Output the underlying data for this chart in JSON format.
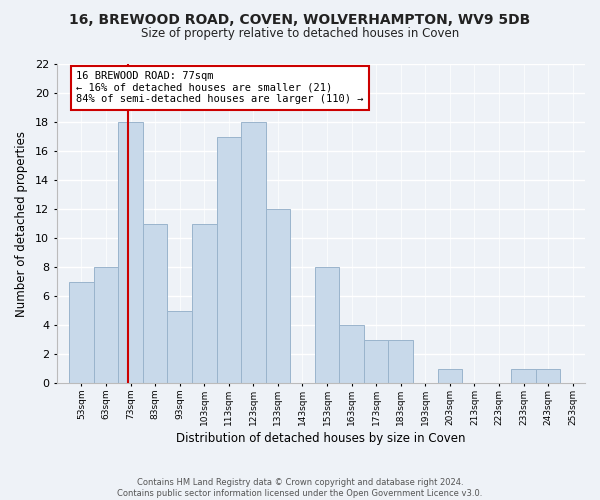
{
  "title": "16, BREWOOD ROAD, COVEN, WOLVERHAMPTON, WV9 5DB",
  "subtitle": "Size of property relative to detached houses in Coven",
  "xlabel": "Distribution of detached houses by size in Coven",
  "ylabel": "Number of detached properties",
  "footer_line1": "Contains HM Land Registry data © Crown copyright and database right 2024.",
  "footer_line2": "Contains public sector information licensed under the Open Government Licence v3.0.",
  "bar_edges": [
    53,
    63,
    73,
    83,
    93,
    103,
    113,
    123,
    133,
    143,
    153,
    163,
    173,
    183,
    193,
    203,
    213,
    223,
    233,
    243,
    253
  ],
  "bar_heights": [
    7,
    8,
    18,
    11,
    5,
    11,
    17,
    18,
    12,
    0,
    8,
    4,
    3,
    3,
    0,
    1,
    0,
    0,
    1,
    1
  ],
  "bar_color": "#c8d9ea",
  "bar_edgecolor": "#9ab4cc",
  "subject_line_x": 77,
  "subject_label": "16 BREWOOD ROAD: 77sqm",
  "annotation_line1": "← 16% of detached houses are smaller (21)",
  "annotation_line2": "84% of semi-detached houses are larger (110) →",
  "annotation_box_color": "#ffffff",
  "annotation_box_edgecolor": "#cc0000",
  "subject_line_color": "#cc0000",
  "ylim": [
    0,
    22
  ],
  "xlim": [
    48,
    263
  ],
  "tick_labels": [
    "53sqm",
    "63sqm",
    "73sqm",
    "83sqm",
    "93sqm",
    "103sqm",
    "113sqm",
    "123sqm",
    "133sqm",
    "143sqm",
    "153sqm",
    "163sqm",
    "173sqm",
    "183sqm",
    "193sqm",
    "203sqm",
    "213sqm",
    "223sqm",
    "233sqm",
    "243sqm",
    "253sqm"
  ],
  "background_color": "#eef2f7"
}
